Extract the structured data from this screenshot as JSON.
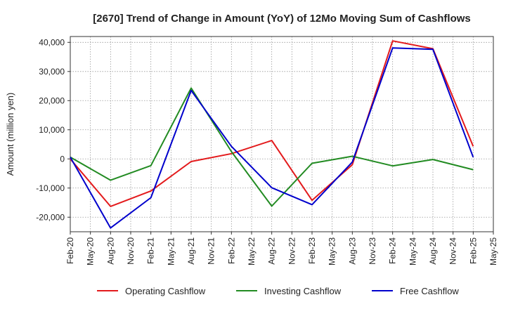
{
  "chart_data": {
    "type": "line",
    "title": "[2670]  Trend of Change in Amount (YoY) of 12Mo Moving Sum of Cashflows",
    "xlabel": "",
    "ylabel": "Amount (million yen)",
    "ylim": [
      -25000,
      42000
    ],
    "yticks": [
      -20000,
      -10000,
      0,
      10000,
      20000,
      30000,
      40000
    ],
    "ytick_labels": [
      "-20,000",
      "-10,000",
      "0",
      "10,000",
      "20,000",
      "30,000",
      "40,000"
    ],
    "categories": [
      "Feb-20",
      "May-20",
      "Aug-20",
      "Nov-20",
      "Feb-21",
      "May-21",
      "Aug-21",
      "Nov-21",
      "Feb-22",
      "May-22",
      "Aug-22",
      "Nov-22",
      "Feb-23",
      "May-23",
      "Aug-23",
      "Nov-23",
      "Feb-24",
      "May-24",
      "Aug-24",
      "Nov-24",
      "Feb-25",
      "May-25"
    ],
    "grid": true,
    "legend_position": "bottom",
    "series": [
      {
        "name": "Operating Cashflow",
        "color": "#e31a1c",
        "points": [
          {
            "x": "Feb-20",
            "y": 0
          },
          {
            "x": "Aug-20",
            "y": -16300
          },
          {
            "x": "Feb-21",
            "y": -11000
          },
          {
            "x": "Aug-21",
            "y": -900
          },
          {
            "x": "Feb-22",
            "y": 1800
          },
          {
            "x": "Aug-22",
            "y": 6300
          },
          {
            "x": "Feb-23",
            "y": -14200
          },
          {
            "x": "Aug-23",
            "y": -2000
          },
          {
            "x": "Feb-24",
            "y": 40500
          },
          {
            "x": "Aug-24",
            "y": 37800
          },
          {
            "x": "Feb-25",
            "y": 4300
          }
        ]
      },
      {
        "name": "Investing Cashflow",
        "color": "#228b22",
        "points": [
          {
            "x": "Feb-20",
            "y": 600
          },
          {
            "x": "Aug-20",
            "y": -7300
          },
          {
            "x": "Feb-21",
            "y": -2300
          },
          {
            "x": "Aug-21",
            "y": 24300
          },
          {
            "x": "Feb-22",
            "y": 2500
          },
          {
            "x": "Aug-22",
            "y": -16200
          },
          {
            "x": "Feb-23",
            "y": -1500
          },
          {
            "x": "Aug-23",
            "y": 900
          },
          {
            "x": "Feb-24",
            "y": -2400
          },
          {
            "x": "Aug-24",
            "y": -200
          },
          {
            "x": "Feb-25",
            "y": -3700
          }
        ]
      },
      {
        "name": "Free Cashflow",
        "color": "#0000cc",
        "points": [
          {
            "x": "Feb-20",
            "y": 600
          },
          {
            "x": "Aug-20",
            "y": -23700
          },
          {
            "x": "Feb-21",
            "y": -13300
          },
          {
            "x": "Aug-21",
            "y": 23500
          },
          {
            "x": "Feb-22",
            "y": 4300
          },
          {
            "x": "Aug-22",
            "y": -9900
          },
          {
            "x": "Feb-23",
            "y": -15700
          },
          {
            "x": "Aug-23",
            "y": -1100
          },
          {
            "x": "Feb-24",
            "y": 38100
          },
          {
            "x": "Aug-24",
            "y": 37600
          },
          {
            "x": "Feb-25",
            "y": 600
          }
        ]
      }
    ]
  }
}
